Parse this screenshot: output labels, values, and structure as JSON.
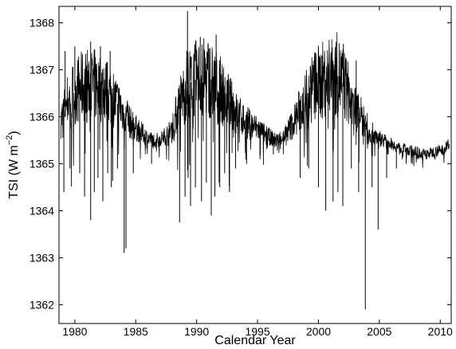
{
  "chart_data": {
    "type": "line",
    "title": "",
    "xlabel": "Calendar Year",
    "ylabel": "TSI (W m",
    "ylabel_sup": "−2",
    "ylabel_close": ")",
    "xlim": [
      1978.7,
      2010.9
    ],
    "ylim": [
      1361.6,
      1368.35
    ],
    "xticks": [
      1980,
      1985,
      1990,
      1995,
      2000,
      2005,
      2010
    ],
    "xtick_labels": [
      "1980",
      "1985",
      "1990",
      "1995",
      "2000",
      "2005",
      "2010"
    ],
    "yticks": [
      1362,
      1363,
      1364,
      1365,
      1366,
      1367,
      1368
    ],
    "ytick_labels": [
      "1362",
      "1363",
      "1364",
      "1365",
      "1366",
      "1367",
      "1368"
    ],
    "grid": false,
    "line_color": "#000000",
    "series": [
      {
        "baseline": {
          "x": [
            1978.85,
            1979.3,
            1980.0,
            1981.0,
            1982.0,
            1983.0,
            1984.0,
            1984.6,
            1985.3,
            1986.0,
            1986.6,
            1987.2,
            1987.9,
            1988.5,
            1989.2,
            1990.0,
            1991.0,
            1991.8,
            1992.5,
            1993.2,
            1994.0,
            1995.0,
            1995.8,
            1996.5,
            1997.2,
            1997.9,
            1998.6,
            1999.3,
            2000.0,
            2000.8,
            2001.5,
            2002.1,
            2002.8,
            2003.5,
            2004.2,
            2005.0,
            2005.8,
            2006.5,
            2007.3,
            2008.0,
            2008.8,
            2009.5,
            2010.2,
            2010.75
          ],
          "y": [
            1365.9,
            1366.3,
            1366.55,
            1366.7,
            1366.65,
            1366.45,
            1366.1,
            1365.85,
            1365.7,
            1365.55,
            1365.5,
            1365.55,
            1365.7,
            1366.2,
            1366.7,
            1366.8,
            1366.85,
            1366.6,
            1366.4,
            1366.1,
            1365.9,
            1365.75,
            1365.6,
            1365.5,
            1365.6,
            1365.85,
            1366.2,
            1366.55,
            1366.75,
            1366.8,
            1366.9,
            1366.7,
            1366.3,
            1366.0,
            1365.7,
            1365.55,
            1365.45,
            1365.35,
            1365.3,
            1365.25,
            1365.2,
            1365.25,
            1365.3,
            1365.45
          ]
        },
        "spikes": {
          "x": [
            1979.1,
            1979.6,
            1980.4,
            1980.8,
            1981.3,
            1981.6,
            1981.9,
            1982.3,
            1982.7,
            1983.0,
            1983.5,
            1984.05,
            1984.2,
            1984.8,
            1986.3,
            1988.6,
            1989.05,
            1989.3,
            1989.5,
            1989.9,
            1990.4,
            1990.8,
            1991.2,
            1991.5,
            1991.9,
            1992.3,
            1992.7,
            1993.2,
            1994.1,
            1995.2,
            1996.3,
            1998.5,
            1999.2,
            2000.0,
            2000.6,
            2001.2,
            2001.6,
            2002.0,
            2002.7,
            2003.3,
            2003.85,
            2004.4,
            2004.9,
            2005.6,
            2006.4,
            2007.2,
            2008.1
          ],
          "y": [
            1364.4,
            1364.9,
            1364.8,
            1364.3,
            1363.8,
            1364.4,
            1364.7,
            1364.2,
            1364.8,
            1364.5,
            1364.9,
            1363.1,
            1363.2,
            1364.8,
            1365.0,
            1363.75,
            1364.3,
            1364.7,
            1364.1,
            1364.5,
            1364.2,
            1364.6,
            1363.9,
            1364.3,
            1364.5,
            1364.8,
            1364.4,
            1364.9,
            1365.0,
            1365.1,
            1365.2,
            1364.7,
            1364.9,
            1364.5,
            1364.0,
            1364.2,
            1364.4,
            1364.1,
            1364.9,
            1364.4,
            1361.9,
            1364.5,
            1363.6,
            1364.7,
            1364.9,
            1365.0,
            1365.1
          ]
        },
        "peaks": {
          "x": [
            1979.2,
            1980.0,
            1981.3,
            1982.1,
            1982.9,
            1989.25,
            1990.3,
            1991.6,
            2000.3,
            2002.05,
            2003.1
          ],
          "y": [
            1367.4,
            1367.5,
            1367.6,
            1367.5,
            1367.4,
            1368.25,
            1367.7,
            1367.75,
            1367.3,
            1367.55,
            1367.2
          ]
        }
      }
    ]
  }
}
